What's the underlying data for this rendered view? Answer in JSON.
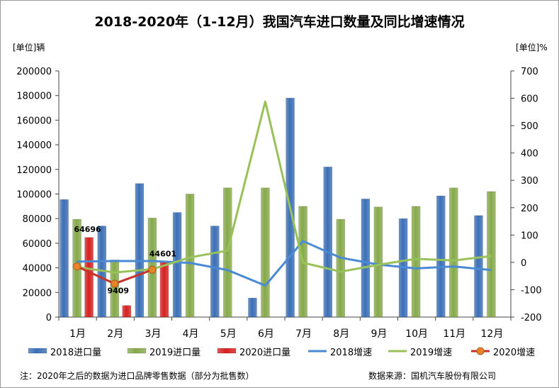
{
  "title": "2018-2020年（1-12月）我国汽车进口数量及同比增速情况",
  "y_left_unit": "[单位]辆",
  "y_right_unit": "[单位]%",
  "footnote": "注：2020年之后的数据为进口品牌零售数据（部分为批售数）",
  "source": "数据来源：国机汽车股份有限公司",
  "colors": {
    "bar2018": "#3b6fb6",
    "bar2019": "#86a94a",
    "bar2020": "#d62020",
    "line2018": "#4a8ad4",
    "line2019": "#99c15a",
    "line2020": "#c9342a",
    "marker2020": "#e8842a"
  },
  "chart_data": {
    "type": "bar",
    "categories": [
      "1月",
      "2月",
      "3月",
      "4月",
      "5月",
      "6月",
      "7月",
      "8月",
      "9月",
      "10月",
      "11月",
      "12月"
    ],
    "y_left_ticks": [
      "0",
      "20000",
      "40000",
      "60000",
      "80000",
      "100000",
      "120000",
      "140000",
      "160000",
      "180000",
      "200000"
    ],
    "y_right_ticks": [
      "-200",
      "-100",
      "0",
      "100",
      "200",
      "300",
      "400",
      "500",
      "600",
      "700"
    ],
    "ylim_left": [
      0,
      200000
    ],
    "ylim_right": [
      -200,
      700
    ],
    "series": [
      {
        "name": "2018进口量",
        "kind": "bar",
        "axis": "left",
        "values": [
          95500,
          74000,
          108500,
          85000,
          74000,
          15500,
          178000,
          122000,
          96000,
          80000,
          98500,
          82500
        ]
      },
      {
        "name": "2019进口量",
        "kind": "bar",
        "axis": "left",
        "values": [
          79500,
          46500,
          80500,
          100000,
          105000,
          105000,
          90000,
          79500,
          89500,
          90000,
          105000,
          102000
        ]
      },
      {
        "name": "2020进口量",
        "kind": "bar",
        "axis": "left",
        "values": [
          64696,
          9409,
          44601,
          null,
          null,
          null,
          null,
          null,
          null,
          null,
          null,
          null
        ]
      },
      {
        "name": "2018增速",
        "kind": "line",
        "axis": "right",
        "values": [
          3,
          5,
          5,
          -2,
          -28,
          -85,
          78,
          17,
          -8,
          -22,
          -15,
          -28
        ]
      },
      {
        "name": "2019增速",
        "kind": "line",
        "axis": "right",
        "values": [
          -17,
          -37,
          -25,
          18,
          43,
          588,
          -1,
          -34,
          -9,
          13,
          7,
          23
        ]
      },
      {
        "name": "2020增速",
        "kind": "line",
        "axis": "right",
        "values": [
          -15,
          -78,
          -27,
          null,
          null,
          null,
          null,
          null,
          null,
          null,
          null,
          null
        ]
      }
    ],
    "data_labels": [
      {
        "series": "2020进口量",
        "category": "1月",
        "text": "64696"
      },
      {
        "series": "2020进口量",
        "category": "2月",
        "text": "9409"
      },
      {
        "series": "2020进口量",
        "category": "3月",
        "text": "44601"
      }
    ],
    "legend_position": "bottom",
    "grid": false
  }
}
